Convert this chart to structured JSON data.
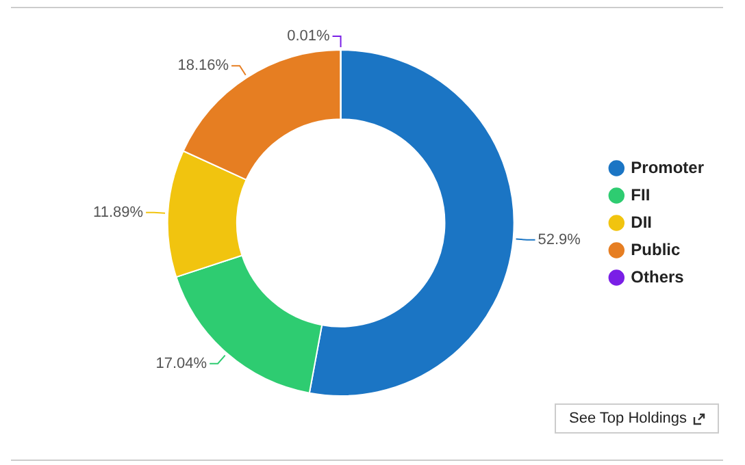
{
  "chart_data": {
    "type": "donut",
    "categories": [
      "Promoter",
      "FII",
      "DII",
      "Public",
      "Others"
    ],
    "values": [
      52.9,
      17.04,
      11.89,
      18.16,
      0.01
    ],
    "colors": [
      "#1b75c4",
      "#2ecc71",
      "#f1c40f",
      "#e67e22",
      "#7a1fe6"
    ],
    "value_labels": [
      "52.9%",
      "17.04%",
      "11.89%",
      "18.16%",
      "0.01%"
    ],
    "legend": "right",
    "annotations": [
      "See Top Holdings"
    ]
  }
}
